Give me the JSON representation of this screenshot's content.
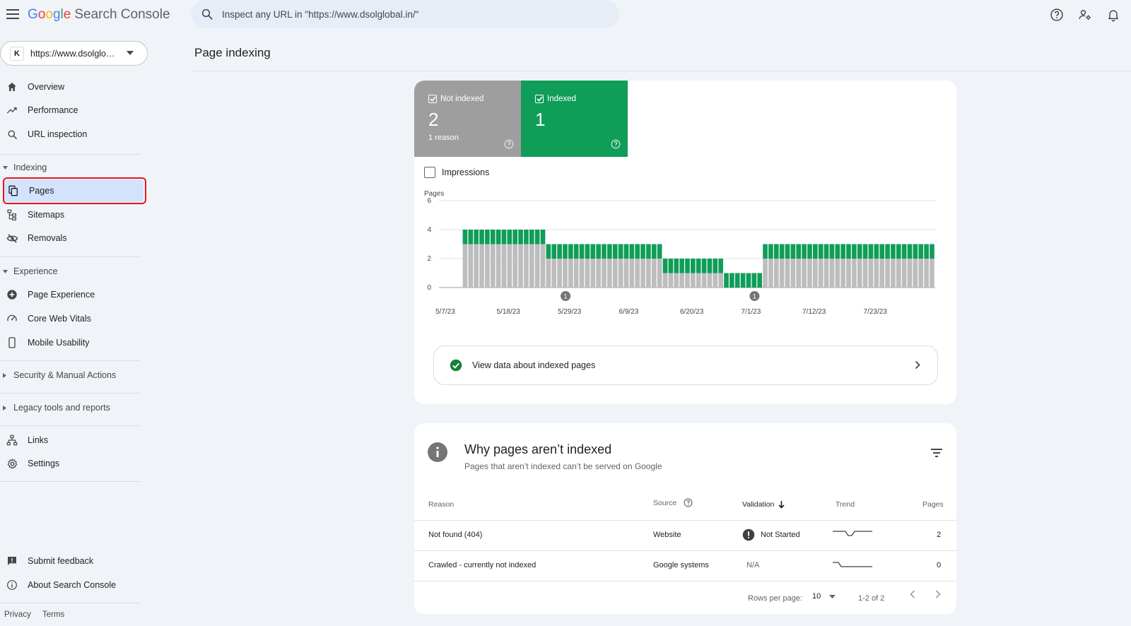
{
  "app": {
    "logo_letters": [
      "G",
      "o",
      "o",
      "g",
      "l",
      "e"
    ],
    "product": "Search Console"
  },
  "search": {
    "placeholder": "Inspect any URL in \"https://www.dsolglobal.in/\""
  },
  "property": {
    "label": "https://www.dsolglo…",
    "favicon_text": "K"
  },
  "nav": {
    "overview": "Overview",
    "performance": "Performance",
    "url_inspection": "URL inspection",
    "indexing_section": "Indexing",
    "pages": "Pages",
    "sitemaps": "Sitemaps",
    "removals": "Removals",
    "experience_section": "Experience",
    "page_experience": "Page Experience",
    "core_web_vitals": "Core Web Vitals",
    "mobile_usability": "Mobile Usability",
    "security_section": "Security & Manual Actions",
    "legacy_section": "Legacy tools and reports",
    "links": "Links",
    "settings": "Settings",
    "submit_feedback": "Submit feedback",
    "about": "About Search Console",
    "privacy": "Privacy",
    "terms": "Terms"
  },
  "page_title": "Page indexing",
  "summary": {
    "not_indexed": {
      "label": "Not indexed",
      "count": "2",
      "sub": "1 reason"
    },
    "indexed": {
      "label": "Indexed",
      "count": "1"
    }
  },
  "impressions_label": "Impressions",
  "view_data_label": "View data about indexed pages",
  "colors": {
    "indexed": "#0f9d58",
    "not_indexed": "#bdbdbd",
    "accent": "#1a73e8",
    "highlight": "#e8151d"
  },
  "chart_data": {
    "type": "bar",
    "stacked": true,
    "ylabel": "Pages",
    "ylim": [
      0,
      6
    ],
    "yticks": [
      "0",
      "2",
      "4",
      "6"
    ],
    "xticks": [
      "5/7/23",
      "5/18/23",
      "5/29/23",
      "6/9/23",
      "6/20/23",
      "7/1/23",
      "7/12/23",
      "7/23/23"
    ],
    "annotations": [
      {
        "label": "1",
        "date": "5/28/23"
      },
      {
        "label": "1",
        "date": "7/1/23"
      }
    ],
    "segments": [
      {
        "from": "5/10/23",
        "to": "5/24/23",
        "not_indexed": 3,
        "indexed": 1
      },
      {
        "from": "5/25/23",
        "to": "6/14/23",
        "not_indexed": 2,
        "indexed": 1
      },
      {
        "from": "6/15/23",
        "to": "6/25/23",
        "not_indexed": 1,
        "indexed": 1
      },
      {
        "from": "6/26/23",
        "to": "7/2/23",
        "not_indexed": 0,
        "indexed": 1
      },
      {
        "from": "7/3/23",
        "to": "8/2/23",
        "not_indexed": 2,
        "indexed": 1
      }
    ],
    "grid": true,
    "series": [
      {
        "name": "Not indexed"
      },
      {
        "name": "Indexed"
      }
    ]
  },
  "why": {
    "title": "Why pages aren’t indexed",
    "subtitle": "Pages that aren’t indexed can’t be served on Google",
    "headers": {
      "reason": "Reason",
      "source": "Source",
      "validation": "Validation",
      "trend": "Trend",
      "pages": "Pages"
    },
    "rows": [
      {
        "reason": "Not found (404)",
        "source": "Website",
        "validation": "Not Started",
        "pages": "2"
      },
      {
        "reason": "Crawled - currently not indexed",
        "source": "Google systems",
        "validation": "N/A",
        "pages": "0"
      }
    ],
    "pagination": {
      "rows_label": "Rows per page:",
      "rows_value": "10",
      "range": "1-2 of 2"
    }
  }
}
